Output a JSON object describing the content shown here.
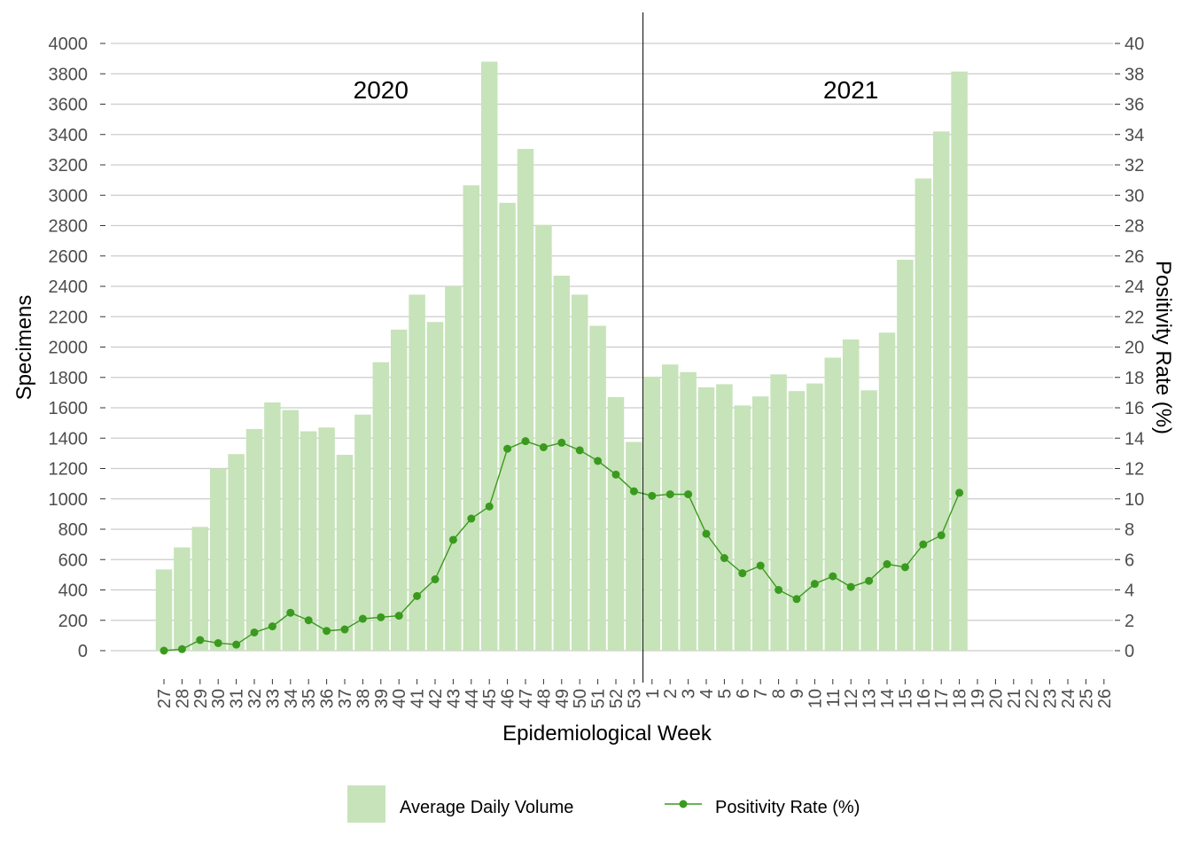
{
  "chart_data": {
    "type": "bar",
    "xlabel": "Epidemiological Week",
    "ylabel": "Specimens",
    "y2label": "Positivity Rate (%)",
    "ylim": [
      0,
      4000
    ],
    "y2lim": [
      0,
      40
    ],
    "y_ticks": [
      0,
      200,
      400,
      600,
      800,
      1000,
      1200,
      1400,
      1600,
      1800,
      2000,
      2200,
      2400,
      2600,
      2800,
      3000,
      3200,
      3400,
      3600,
      3800,
      4000
    ],
    "y2_ticks": [
      0,
      2,
      4,
      6,
      8,
      10,
      12,
      14,
      16,
      18,
      20,
      22,
      24,
      26,
      28,
      30,
      32,
      34,
      36,
      38,
      40
    ],
    "grid": true,
    "legend_position": "bottom",
    "categories": [
      "27",
      "28",
      "29",
      "30",
      "31",
      "32",
      "33",
      "34",
      "35",
      "36",
      "37",
      "38",
      "39",
      "40",
      "41",
      "42",
      "43",
      "44",
      "45",
      "46",
      "47",
      "48",
      "49",
      "50",
      "51",
      "52",
      "53",
      "1",
      "2",
      "3",
      "4",
      "5",
      "6",
      "7",
      "8",
      "9",
      "10",
      "11",
      "12",
      "13",
      "14",
      "15",
      "16",
      "17",
      "18",
      "19",
      "20",
      "21",
      "22",
      "23",
      "24",
      "25",
      "26"
    ],
    "year_divider_after": "53",
    "annotations": [
      {
        "text": "2020",
        "at_category": "39"
      },
      {
        "text": "2021",
        "at_category": "12"
      }
    ],
    "series": [
      {
        "name": "Average Daily Volume",
        "type": "bar",
        "axis": "left",
        "color": "#c7e3b9",
        "values": [
          535,
          680,
          815,
          1200,
          1295,
          1460,
          1635,
          1585,
          1445,
          1470,
          1290,
          1555,
          1900,
          2115,
          2345,
          2165,
          2400,
          3065,
          3880,
          2950,
          3305,
          2805,
          2470,
          2345,
          2140,
          1670,
          1375,
          1805,
          1885,
          1835,
          1735,
          1755,
          1615,
          1675,
          1820,
          1710,
          1760,
          1930,
          2050,
          1715,
          2095,
          2575,
          3110,
          3420,
          3815,
          null,
          null,
          null,
          null,
          null,
          null,
          null,
          null
        ]
      },
      {
        "name": "Positivity Rate (%)",
        "type": "line",
        "axis": "right",
        "color": "#3a9a1f",
        "values": [
          0.0,
          0.1,
          0.7,
          0.5,
          0.4,
          1.2,
          1.6,
          2.5,
          2.0,
          1.3,
          1.4,
          2.1,
          2.2,
          2.3,
          3.6,
          4.7,
          7.3,
          8.7,
          9.5,
          13.3,
          13.8,
          13.4,
          13.7,
          13.2,
          12.5,
          11.6,
          10.5,
          10.2,
          10.3,
          10.3,
          7.7,
          6.1,
          5.1,
          5.6,
          4.0,
          3.4,
          4.4,
          4.9,
          4.2,
          4.6,
          5.7,
          5.5,
          7.0,
          7.6,
          10.4,
          null,
          null,
          null,
          null,
          null,
          null,
          null,
          null
        ]
      }
    ]
  }
}
